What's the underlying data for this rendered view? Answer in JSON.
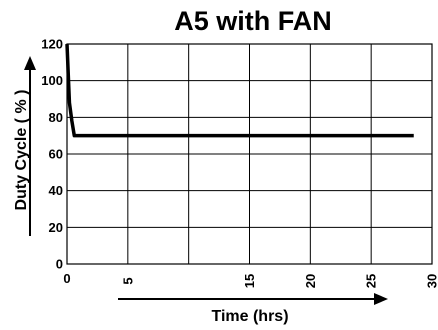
{
  "chart_data": {
    "type": "line",
    "title": "A5 with FAN",
    "xlabel": "Time (hrs)",
    "ylabel": "Duty Cycle ( % )",
    "xlim": [
      0,
      30
    ],
    "ylim": [
      0,
      120
    ],
    "x_ticks": [
      0,
      5,
      15,
      20,
      25,
      30
    ],
    "x_tick_labels": [
      "0",
      "5",
      "15",
      "20",
      "25",
      "30"
    ],
    "x_gridlines": [
      0,
      5,
      10,
      15,
      20,
      25,
      30
    ],
    "y_ticks": [
      0,
      20,
      40,
      60,
      80,
      100,
      120
    ],
    "y_tick_labels": [
      "0",
      "20",
      "40",
      "60",
      "80",
      "100",
      "120"
    ],
    "grid": true,
    "series": [
      {
        "x": [
          0,
          0.2,
          0.4,
          0.6,
          28.5
        ],
        "y": [
          120,
          88,
          78,
          70,
          70
        ]
      }
    ]
  }
}
